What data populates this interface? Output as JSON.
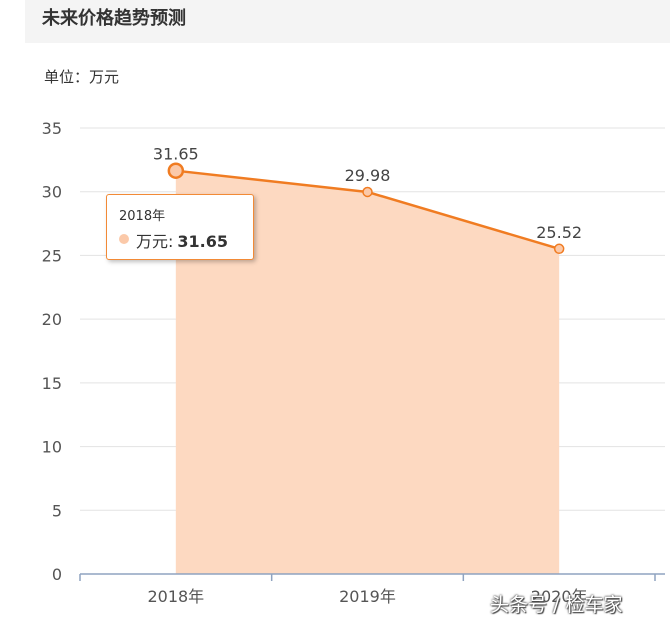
{
  "header": {
    "title": "未来价格趋势预测"
  },
  "unit_label": "单位：万元",
  "chart_data": {
    "type": "area",
    "categories": [
      "2018年",
      "2019年",
      "2020年"
    ],
    "series": [
      {
        "name": "万元",
        "values": [
          31.65,
          29.98,
          25.52
        ]
      }
    ],
    "value_labels": [
      "31.65",
      "29.98",
      "25.52"
    ],
    "yticks": [
      "0",
      "5",
      "10",
      "15",
      "20",
      "25",
      "30",
      "35"
    ],
    "ylim": [
      0,
      35
    ],
    "ytick_step": 5,
    "grid": true,
    "line_color": "#f07c22",
    "fill_color": "#fdd9c1",
    "marker_fill": "#fbc9a9",
    "highlight_index": 0
  },
  "tooltip": {
    "category": "2018年",
    "series_name": "万元",
    "colon": ":",
    "value": "31.65"
  },
  "watermark": "头条号 / 检车家"
}
